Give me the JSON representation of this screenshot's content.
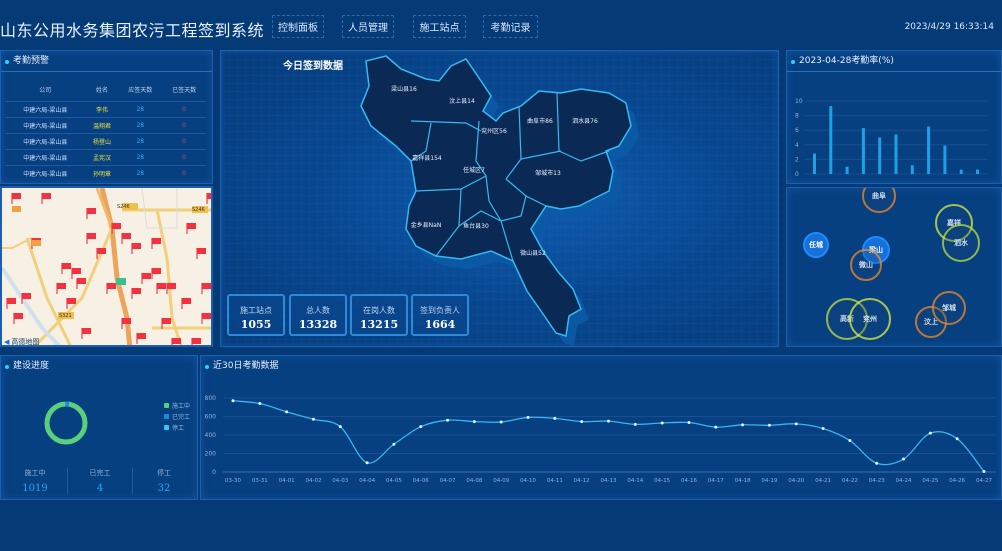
{
  "header": {
    "title": "山东公用水务集团农污工程签到系统",
    "nav": [
      "控制面板",
      "人员管理",
      "施工站点",
      "考勤记录"
    ],
    "datetime": "2023/4/29 16:33:14"
  },
  "warning": {
    "title": "考勤预警",
    "columns": [
      "公司",
      "姓名",
      "应签天数",
      "已签天数"
    ],
    "rows": [
      [
        "中建六局-梁山县",
        "李伟",
        "28",
        "0"
      ],
      [
        "中建六局-梁山县",
        "温翔君",
        "28",
        "0"
      ],
      [
        "中建六局-梁山县",
        "杨登山",
        "28",
        "0"
      ],
      [
        "中建六局-梁山县",
        "孟宪汉",
        "28",
        "0"
      ],
      [
        "中建六局-梁山县",
        "孙明章",
        "28",
        "0"
      ]
    ]
  },
  "site_map": {
    "attribution": "高德地图",
    "road_labels": [
      "S246",
      "S246",
      "S321"
    ]
  },
  "center": {
    "title": "今日签到数据",
    "regions": [
      {
        "name": "梁山县",
        "value": "16"
      },
      {
        "name": "汶上县",
        "value": "14"
      },
      {
        "name": "兖州区",
        "value": "56"
      },
      {
        "name": "曲阜市",
        "value": "86"
      },
      {
        "name": "泗水县",
        "value": "76"
      },
      {
        "name": "嘉祥县",
        "value": "154"
      },
      {
        "name": "任城区",
        "value": "7"
      },
      {
        "name": "邹城市",
        "value": "13"
      },
      {
        "name": "金乡县",
        "value": "NaN"
      },
      {
        "name": "鱼台县",
        "value": "30"
      },
      {
        "name": "微山县",
        "value": "52"
      }
    ],
    "stats": [
      {
        "label": "施工站点",
        "value": "1055"
      },
      {
        "label": "总人数",
        "value": "13328"
      },
      {
        "label": "在岗人数",
        "value": "13215"
      },
      {
        "label": "签到负责人",
        "value": "1664"
      }
    ]
  },
  "rate": {
    "title": "2023-04-28考勤率(%)"
  },
  "bubbles": [
    {
      "name": "曲阜",
      "color": "#f08a2a"
    },
    {
      "name": "任城",
      "color": "#1a8cff"
    },
    {
      "name": "梁山",
      "color": "#1a8cff"
    },
    {
      "name": "微山",
      "color": "#f08a2a"
    },
    {
      "name": "嘉祥",
      "color": "#d8f040"
    },
    {
      "name": "泗水",
      "color": "#b8e040"
    },
    {
      "name": "高新",
      "color": "#c8e040"
    },
    {
      "name": "兖州",
      "color": "#d8f040"
    },
    {
      "name": "汶上",
      "color": "#f08a2a"
    },
    {
      "name": "邹城",
      "color": "#f08a2a"
    }
  ],
  "progress": {
    "title": "建设进度",
    "legend": [
      {
        "label": "施工中",
        "color": "#5ad07a"
      },
      {
        "label": "已完工",
        "color": "#1e88e5"
      },
      {
        "label": "停工",
        "color": "#38c6f0"
      }
    ],
    "stats": [
      {
        "label": "施工中",
        "value": "1019"
      },
      {
        "label": "已完工",
        "value": "4"
      },
      {
        "label": "停工",
        "value": "32"
      }
    ]
  },
  "trend": {
    "title": "近30日考勤数据"
  },
  "chart_data": [
    {
      "type": "bar",
      "title": "2023-04-28考勤率(%)",
      "ylim": [
        0,
        10
      ],
      "yticks": [
        0,
        2,
        4,
        6,
        8,
        10
      ],
      "values": [
        2.8,
        9.3,
        1.0,
        6.3,
        5.0,
        5.4,
        1.2,
        6.5,
        3.9,
        0.6,
        0.6
      ],
      "grid": true,
      "color": "#1ea0e8"
    },
    {
      "type": "line",
      "title": "近30日考勤数据",
      "ylim": [
        0,
        800
      ],
      "yticks": [
        0,
        200,
        400,
        600,
        800
      ],
      "grid": true,
      "color": "#3ab4f2",
      "x": [
        "03-30",
        "03-31",
        "04-01",
        "04-02",
        "04-03",
        "04-04",
        "04-05",
        "04-06",
        "04-07",
        "04-08",
        "04-09",
        "04-10",
        "04-11",
        "04-12",
        "04-13",
        "04-14",
        "04-15",
        "04-16",
        "04-17",
        "04-18",
        "04-19",
        "04-20",
        "04-21",
        "04-22",
        "04-23",
        "04-24",
        "04-25",
        "04-26",
        "04-27"
      ],
      "values": [
        770,
        740,
        650,
        570,
        490,
        100,
        300,
        490,
        560,
        545,
        540,
        590,
        580,
        545,
        550,
        515,
        530,
        535,
        485,
        510,
        505,
        520,
        470,
        340,
        95,
        140,
        420,
        360,
        5
      ]
    },
    {
      "type": "pie",
      "title": "建设进度",
      "categories": [
        "施工中",
        "已完工",
        "停工"
      ],
      "values": [
        1019,
        4,
        32
      ],
      "donut": true
    }
  ]
}
